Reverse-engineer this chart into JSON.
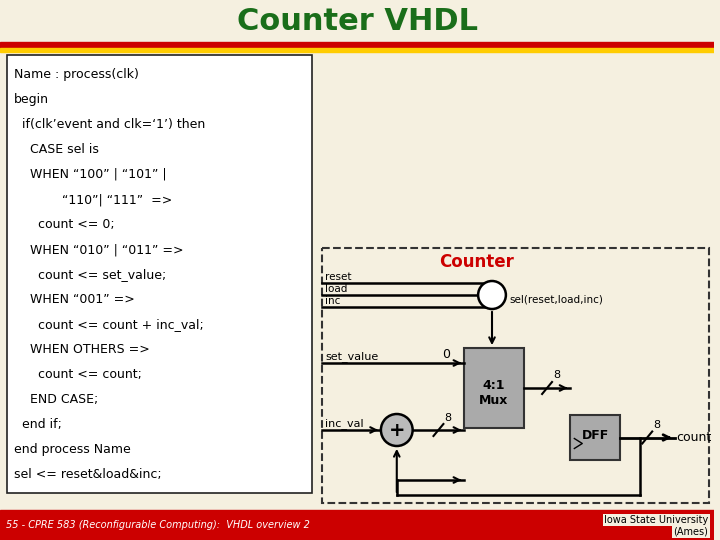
{
  "title": "Counter VHDL",
  "title_color": "#1a6e1a",
  "title_fontsize": 22,
  "slide_bg": "#f5f0e0",
  "code_lines": [
    "Name : process(clk)",
    "begin",
    "  if(clk’event and clk=‘1’) then",
    "    CASE sel is",
    "    WHEN “100” | “101” |",
    "            “110”| “111”  =>",
    "      count <= 0;",
    "    WHEN “010” | “011” =>",
    "      count <= set_value;",
    "    WHEN “001” =>",
    "      count <= count + inc_val;",
    "    WHEN OTHERS =>",
    "      count <= count;",
    "    END CASE;",
    "  end if;",
    "end process Name",
    "sel <= reset&load&inc;"
  ],
  "code_fontsize": 9.0,
  "footer_left": "55 - CPRE 583 (Reconfigurable Computing):  VHDL overview 2",
  "footer_right": "Iowa State University\n(Ames)",
  "footer_fontsize": 7.0,
  "header_bar_color": "#cc0000",
  "header_bar_color2": "#ffcc00",
  "counter_label": "Counter",
  "counter_label_color": "#cc0000",
  "footer_bg": "#cc0000",
  "footer_text_color": "#ffffff",
  "footer_right_color": "#000000"
}
